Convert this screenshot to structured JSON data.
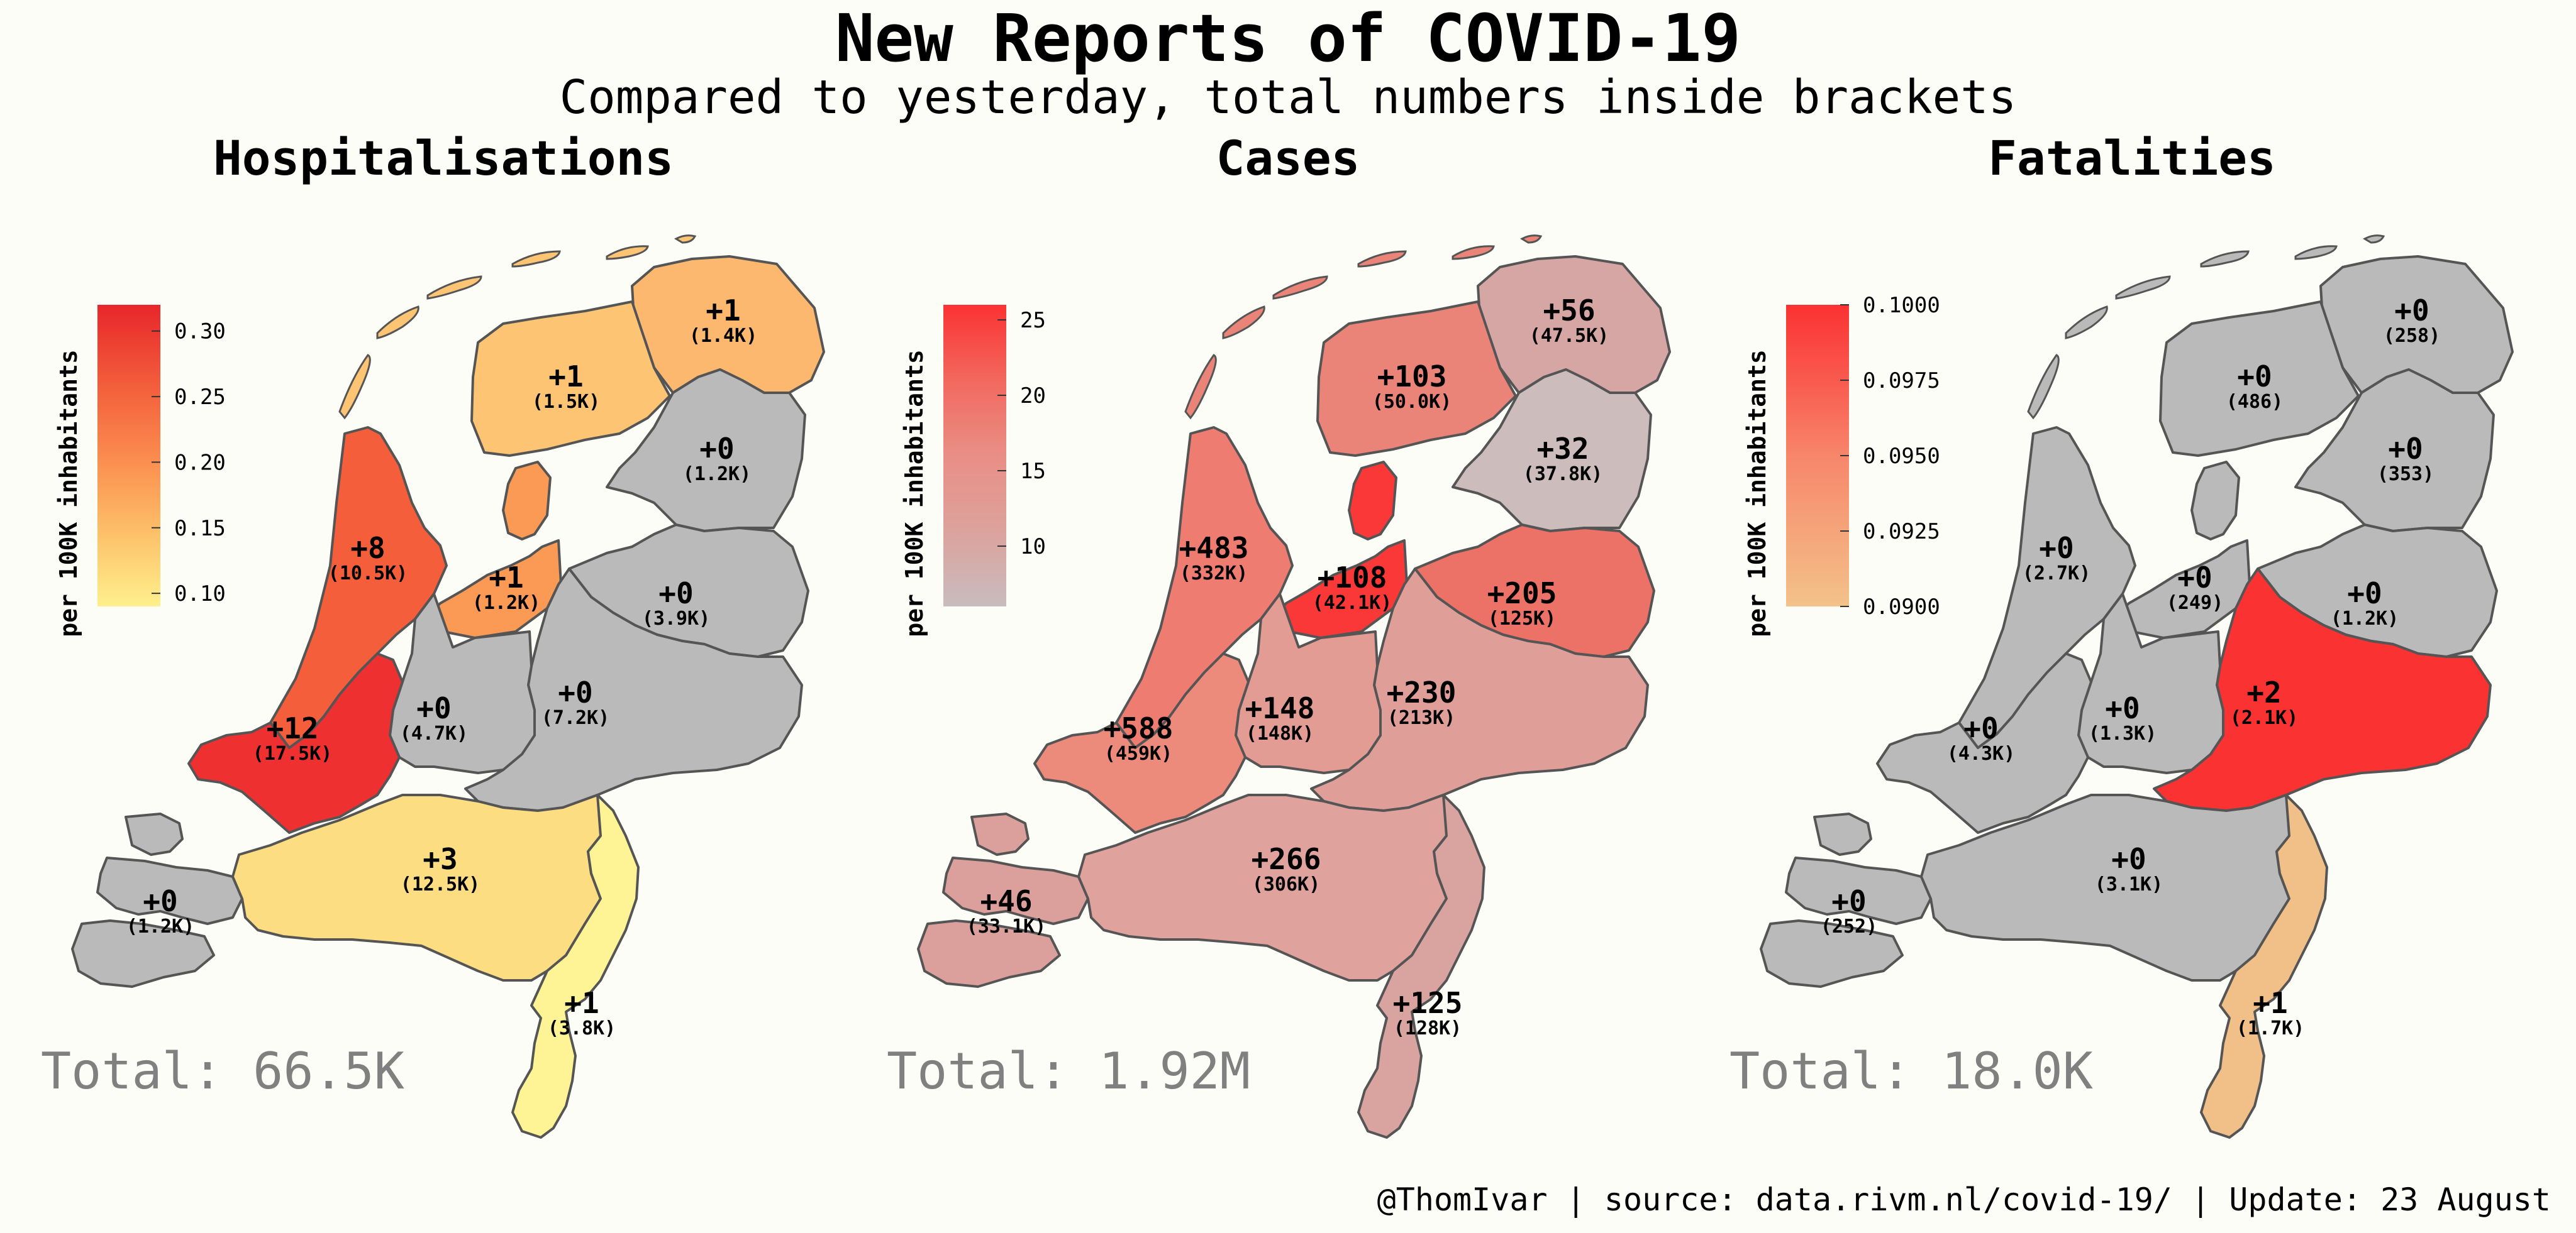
{
  "title": "New Reports of COVID-19",
  "subtitle": "Compared to yesterday, total numbers inside brackets",
  "footer": "@ThomIvar | source: data.rivm.nl/covid-19/ | Update: 23 August",
  "colors": {
    "no_data_gray": "#bababa",
    "background": "#fdfdf8",
    "border": "#555555"
  },
  "chart_data": [
    {
      "type": "choropleth",
      "title": "Hospitalisations",
      "total_label": "Total: 66.5K",
      "colorbar": {
        "label": "per 100K inhabitants",
        "ticks": [
          "0.30",
          "0.25",
          "0.20",
          "0.15",
          "0.10"
        ],
        "range": [
          0.09,
          0.32
        ],
        "colors": [
          "#fef08c",
          "#fdbf68",
          "#fb8a4e",
          "#f25a3a",
          "#e8262a"
        ]
      },
      "regions": [
        {
          "region": "Groningen",
          "change": "+1",
          "total": "(1.4K)",
          "color": "#fdb870"
        },
        {
          "region": "Friesland",
          "change": "+1",
          "total": "(1.5K)",
          "color": "#fdc474"
        },
        {
          "region": "Drenthe",
          "change": "+0",
          "total": "(1.2K)",
          "color": "#bababa"
        },
        {
          "region": "Noord-Holland",
          "change": "+8",
          "total": "(10.5K)",
          "color": "#f45e3a"
        },
        {
          "region": "Flevoland",
          "change": "+1",
          "total": "(1.2K)",
          "color": "#fb9a55"
        },
        {
          "region": "Overijssel",
          "change": "+0",
          "total": "(3.9K)",
          "color": "#bababa"
        },
        {
          "region": "Gelderland",
          "change": "+0",
          "total": "(7.2K)",
          "color": "#bababa"
        },
        {
          "region": "Utrecht",
          "change": "+0",
          "total": "(4.7K)",
          "color": "#bababa"
        },
        {
          "region": "Zuid-Holland",
          "change": "+12",
          "total": "(17.5K)",
          "color": "#ee3030"
        },
        {
          "region": "Zeeland",
          "change": "+0",
          "total": "(1.2K)",
          "color": "#bababa"
        },
        {
          "region": "Noord-Brabant",
          "change": "+3",
          "total": "(12.5K)",
          "color": "#fcdd82"
        },
        {
          "region": "Limburg",
          "change": "+1",
          "total": "(3.8K)",
          "color": "#fef495"
        }
      ]
    },
    {
      "type": "choropleth",
      "title": "Cases",
      "total_label": "Total: 1.92M",
      "colorbar": {
        "label": "per 100K inhabitants",
        "ticks": [
          "25",
          "20",
          "15",
          "10"
        ],
        "range": [
          6,
          26
        ],
        "colors": [
          "#c8bcbe",
          "#dca29c",
          "#e98f86",
          "#f2685e",
          "#fb3232"
        ]
      },
      "regions": [
        {
          "region": "Groningen",
          "change": "+56",
          "total": "(47.5K)",
          "color": "#d6a6a4"
        },
        {
          "region": "Friesland",
          "change": "+103",
          "total": "(50.0K)",
          "color": "#ea8478"
        },
        {
          "region": "Drenthe",
          "change": "+32",
          "total": "(37.8K)",
          "color": "#ccbcbc"
        },
        {
          "region": "Noord-Holland",
          "change": "+483",
          "total": "(332K)",
          "color": "#ee7c70"
        },
        {
          "region": "Flevoland",
          "change": "+108",
          "total": "(42.1K)",
          "color": "#fa3838"
        },
        {
          "region": "Overijssel",
          "change": "+205",
          "total": "(125K)",
          "color": "#ec7166"
        },
        {
          "region": "Gelderland",
          "change": "+230",
          "total": "(213K)",
          "color": "#df9f98"
        },
        {
          "region": "Utrecht",
          "change": "+148",
          "total": "(148K)",
          "color": "#e39c94"
        },
        {
          "region": "Zuid-Holland",
          "change": "+588",
          "total": "(459K)",
          "color": "#ec8a7c"
        },
        {
          "region": "Zeeland",
          "change": "+46",
          "total": "(33.1K)",
          "color": "#dba09c"
        },
        {
          "region": "Noord-Brabant",
          "change": "+266",
          "total": "(306K)",
          "color": "#dfa29c"
        },
        {
          "region": "Limburg",
          "change": "+125",
          "total": "(128K)",
          "color": "#d9a4a0"
        }
      ]
    },
    {
      "type": "choropleth",
      "title": "Fatalities",
      "total_label": "Total: 18.0K",
      "colorbar": {
        "label": "per 100K inhabitants",
        "ticks": [
          "0.1000",
          "0.0975",
          "0.0950",
          "0.0925",
          "0.0900"
        ],
        "range": [
          0.09,
          0.1
        ],
        "colors": [
          "#f3c28a",
          "#f5a47a",
          "#f7866a",
          "#f95a4e",
          "#fb3232"
        ]
      },
      "regions": [
        {
          "region": "Groningen",
          "change": "+0",
          "total": "(258)",
          "color": "#bababa"
        },
        {
          "region": "Friesland",
          "change": "+0",
          "total": "(486)",
          "color": "#bababa"
        },
        {
          "region": "Drenthe",
          "change": "+0",
          "total": "(353)",
          "color": "#bababa"
        },
        {
          "region": "Noord-Holland",
          "change": "+0",
          "total": "(2.7K)",
          "color": "#bababa"
        },
        {
          "region": "Flevoland",
          "change": "+0",
          "total": "(249)",
          "color": "#bababa"
        },
        {
          "region": "Overijssel",
          "change": "+0",
          "total": "(1.2K)",
          "color": "#bababa"
        },
        {
          "region": "Gelderland",
          "change": "+2",
          "total": "(2.1K)",
          "color": "#fb3232"
        },
        {
          "region": "Utrecht",
          "change": "+0",
          "total": "(1.3K)",
          "color": "#bababa"
        },
        {
          "region": "Zuid-Holland",
          "change": "+0",
          "total": "(4.3K)",
          "color": "#bababa"
        },
        {
          "region": "Zeeland",
          "change": "+0",
          "total": "(252)",
          "color": "#bababa"
        },
        {
          "region": "Noord-Brabant",
          "change": "+0",
          "total": "(3.1K)",
          "color": "#bababa"
        },
        {
          "region": "Limburg",
          "change": "+1",
          "total": "(1.7K)",
          "color": "#f0c088"
        }
      ]
    }
  ]
}
